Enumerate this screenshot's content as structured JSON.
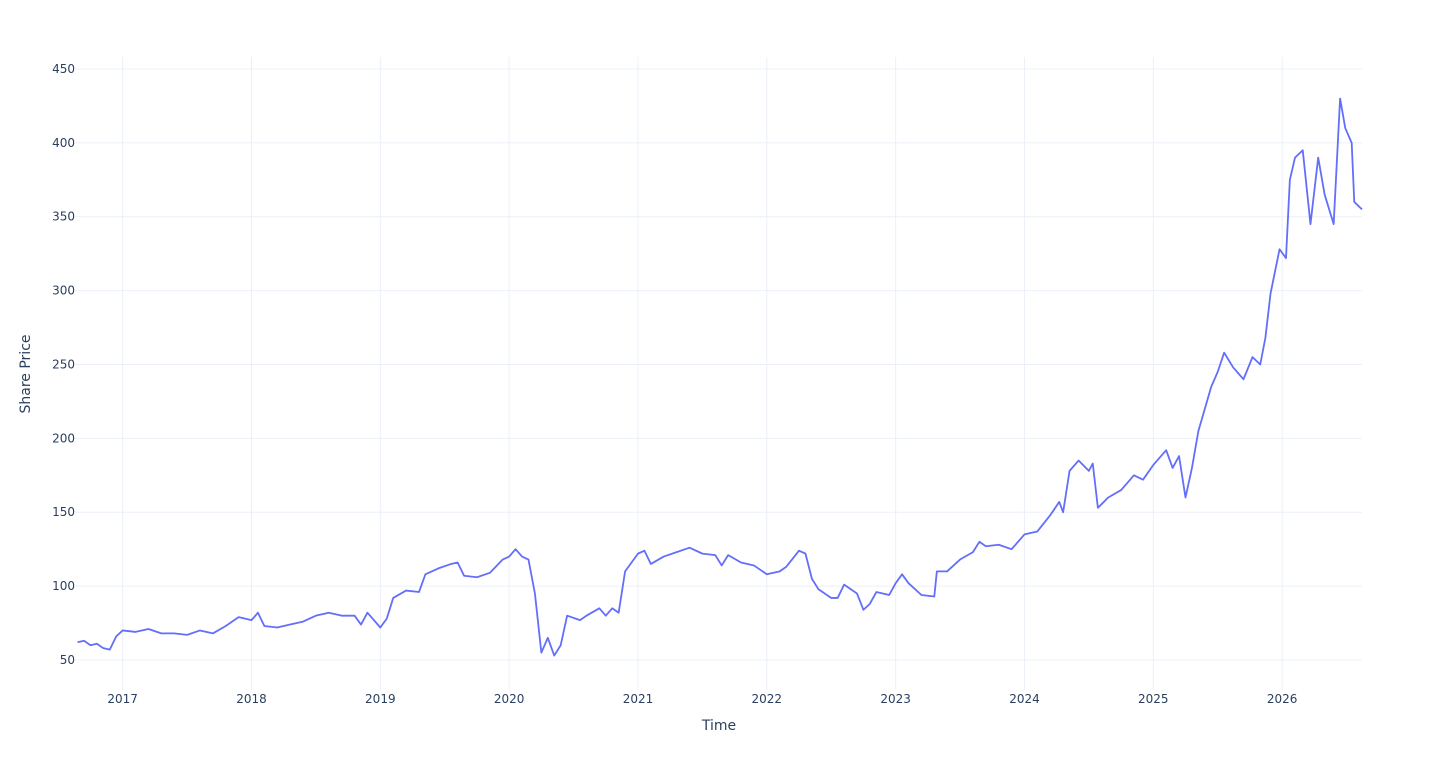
{
  "chart_data": {
    "type": "line",
    "x_label": "Time",
    "y_label": "Share Price",
    "xlim": [
      2016.63,
      2026.62
    ],
    "ylim": [
      29.7,
      458.1
    ],
    "xticks": [
      2017,
      2018,
      2019,
      2020,
      2021,
      2022,
      2023,
      2024,
      2025,
      2026
    ],
    "yticks": [
      50,
      100,
      150,
      200,
      250,
      300,
      350,
      400,
      450
    ],
    "grid": true,
    "x": [
      2016.65,
      2016.7,
      2016.75,
      2016.8,
      2016.85,
      2016.9,
      2016.95,
      2017.0,
      2017.1,
      2017.2,
      2017.3,
      2017.4,
      2017.5,
      2017.6,
      2017.7,
      2017.8,
      2017.9,
      2018.0,
      2018.05,
      2018.1,
      2018.2,
      2018.3,
      2018.4,
      2018.5,
      2018.6,
      2018.7,
      2018.8,
      2018.85,
      2018.9,
      2019.0,
      2019.05,
      2019.1,
      2019.2,
      2019.3,
      2019.35,
      2019.45,
      2019.55,
      2019.6,
      2019.65,
      2019.75,
      2019.85,
      2019.95,
      2020.0,
      2020.05,
      2020.1,
      2020.15,
      2020.2,
      2020.25,
      2020.3,
      2020.35,
      2020.4,
      2020.45,
      2020.55,
      2020.6,
      2020.7,
      2020.75,
      2020.8,
      2020.85,
      2020.9,
      2020.95,
      2021.0,
      2021.05,
      2021.1,
      2021.2,
      2021.3,
      2021.4,
      2021.5,
      2021.6,
      2021.65,
      2021.7,
      2021.8,
      2021.9,
      2022.0,
      2022.1,
      2022.15,
      2022.25,
      2022.3,
      2022.35,
      2022.4,
      2022.5,
      2022.55,
      2022.6,
      2022.7,
      2022.75,
      2022.8,
      2022.85,
      2022.95,
      2023.0,
      2023.05,
      2023.1,
      2023.2,
      2023.3,
      2023.32,
      2023.4,
      2023.5,
      2023.6,
      2023.65,
      2023.7,
      2023.8,
      2023.9,
      2024.0,
      2024.1,
      2024.2,
      2024.27,
      2024.3,
      2024.35,
      2024.42,
      2024.5,
      2024.53,
      2024.57,
      2024.65,
      2024.75,
      2024.85,
      2024.92,
      2025.0,
      2025.1,
      2025.15,
      2025.2,
      2025.25,
      2025.3,
      2025.35,
      2025.45,
      2025.5,
      2025.55,
      2025.62,
      2025.7,
      2025.77,
      2025.83,
      2025.87,
      2025.91,
      2025.98,
      2026.03,
      2026.06,
      2026.1,
      2026.16,
      2026.22,
      2026.28,
      2026.33,
      2026.4,
      2026.45,
      2026.49,
      2026.54,
      2026.56,
      2026.62
    ],
    "series": [
      {
        "name": "Share Price",
        "color": "#636efa",
        "values": [
          62,
          63,
          60,
          61,
          58,
          57,
          66,
          70,
          69,
          71,
          68,
          68,
          67,
          70,
          68,
          73,
          79,
          77,
          82,
          73,
          72,
          74,
          76,
          80,
          82,
          80,
          80,
          74,
          82,
          72,
          78,
          92,
          97,
          96,
          108,
          112,
          115,
          116,
          107,
          106,
          109,
          118,
          120,
          125,
          120,
          118,
          95,
          55,
          65,
          53,
          60,
          80,
          77,
          80,
          85,
          80,
          85,
          82,
          110,
          116,
          122,
          124,
          115,
          120,
          123,
          126,
          122,
          121,
          114,
          121,
          116,
          114,
          108,
          110,
          113,
          124,
          122,
          105,
          98,
          92,
          92,
          101,
          95,
          84,
          88,
          96,
          94,
          102,
          108,
          102,
          94,
          93,
          110,
          110,
          118,
          123,
          130,
          127,
          128,
          125,
          135,
          137,
          148,
          157,
          150,
          178,
          185,
          178,
          183,
          153,
          160,
          165,
          175,
          172,
          182,
          192,
          180,
          188,
          160,
          180,
          205,
          235,
          245,
          258,
          248,
          240,
          255,
          250,
          268,
          298,
          328,
          322,
          375,
          390,
          395,
          345,
          390,
          365,
          345,
          430,
          410,
          400,
          360,
          355
        ]
      }
    ]
  }
}
